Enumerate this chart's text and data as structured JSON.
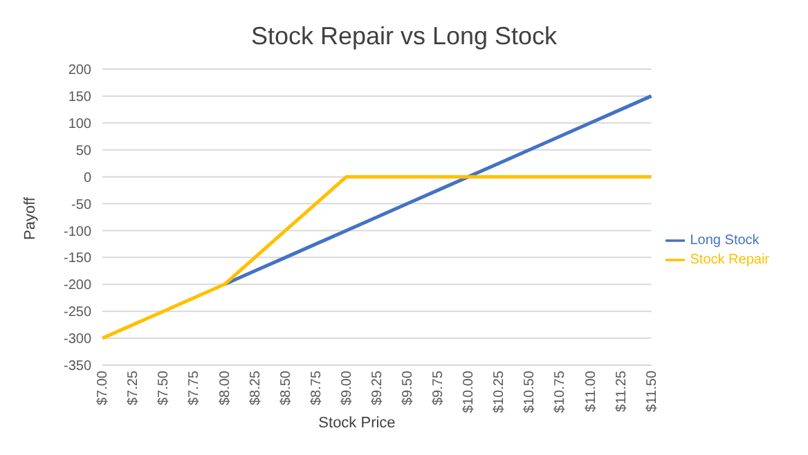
{
  "chart_data": {
    "type": "line",
    "title": "Stock Repair vs Long Stock",
    "xlabel": "Stock Price",
    "ylabel": "Payoff",
    "categories": [
      "$7.00",
      "$7.25",
      "$7.50",
      "$7.75",
      "$8.00",
      "$8.25",
      "$8.50",
      "$8.75",
      "$9.00",
      "$9.25",
      "$9.50",
      "$9.75",
      "$10.00",
      "$10.25",
      "$10.50",
      "$10.75",
      "$11.00",
      "$11.25",
      "$11.50"
    ],
    "series": [
      {
        "name": "Long Stock",
        "color": "#4472c4",
        "values": [
          null,
          null,
          null,
          null,
          -200,
          -175,
          -150,
          -125,
          -100,
          -75,
          -50,
          -25,
          0,
          25,
          50,
          75,
          100,
          125,
          150
        ]
      },
      {
        "name": "Stock Repair",
        "color": "#ffc000",
        "values": [
          -300,
          -275,
          -250,
          -225,
          -200,
          -150,
          -100,
          -50,
          0,
          0,
          0,
          0,
          0,
          0,
          0,
          0,
          0,
          0,
          0
        ]
      }
    ],
    "ylim": [
      -350,
      200
    ],
    "yticks": [
      -350,
      -300,
      -250,
      -200,
      -150,
      -100,
      -50,
      0,
      50,
      100,
      150,
      200
    ],
    "grid": "y",
    "legend": "right",
    "marker": "none",
    "line_style": "solid"
  }
}
